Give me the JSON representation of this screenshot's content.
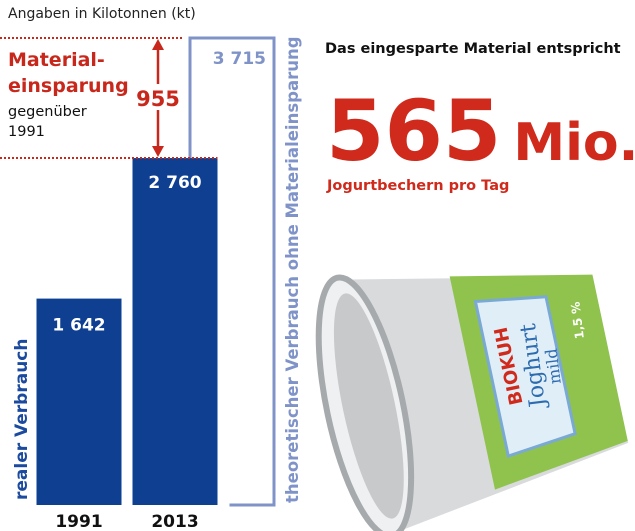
{
  "chart_data": {
    "type": "bar",
    "unit_note": "Angaben in Kilotonnen (kt)",
    "categories": [
      "1991",
      "2013"
    ],
    "series": [
      {
        "name": "realer Verbrauch",
        "color": "#0e3f91",
        "values": [
          1642,
          2760
        ],
        "value_labels": [
          "1 642",
          "2 760"
        ]
      },
      {
        "name": "theoretischer Verbrauch ohne Materialeinsparung",
        "color": "#7f93c8",
        "values": [
          null,
          3715
        ],
        "value_labels": [
          null,
          "3 715"
        ]
      }
    ],
    "savings": {
      "value": 955,
      "lines": [
        "Material-",
        "einsparung",
        "gegenüber",
        "1991"
      ],
      "color": "#c8281c"
    },
    "comparison": {
      "intro": "Das eingesparte Material entspricht",
      "number": "565",
      "unit": "Mio.",
      "caption": "Jogurtbechern pro Tag",
      "color": "#d02a1c"
    },
    "cup_labels": {
      "brand": "BIOKUH",
      "product": "Joghurt",
      "variant": "mild",
      "fat": "1,5 %"
    }
  }
}
